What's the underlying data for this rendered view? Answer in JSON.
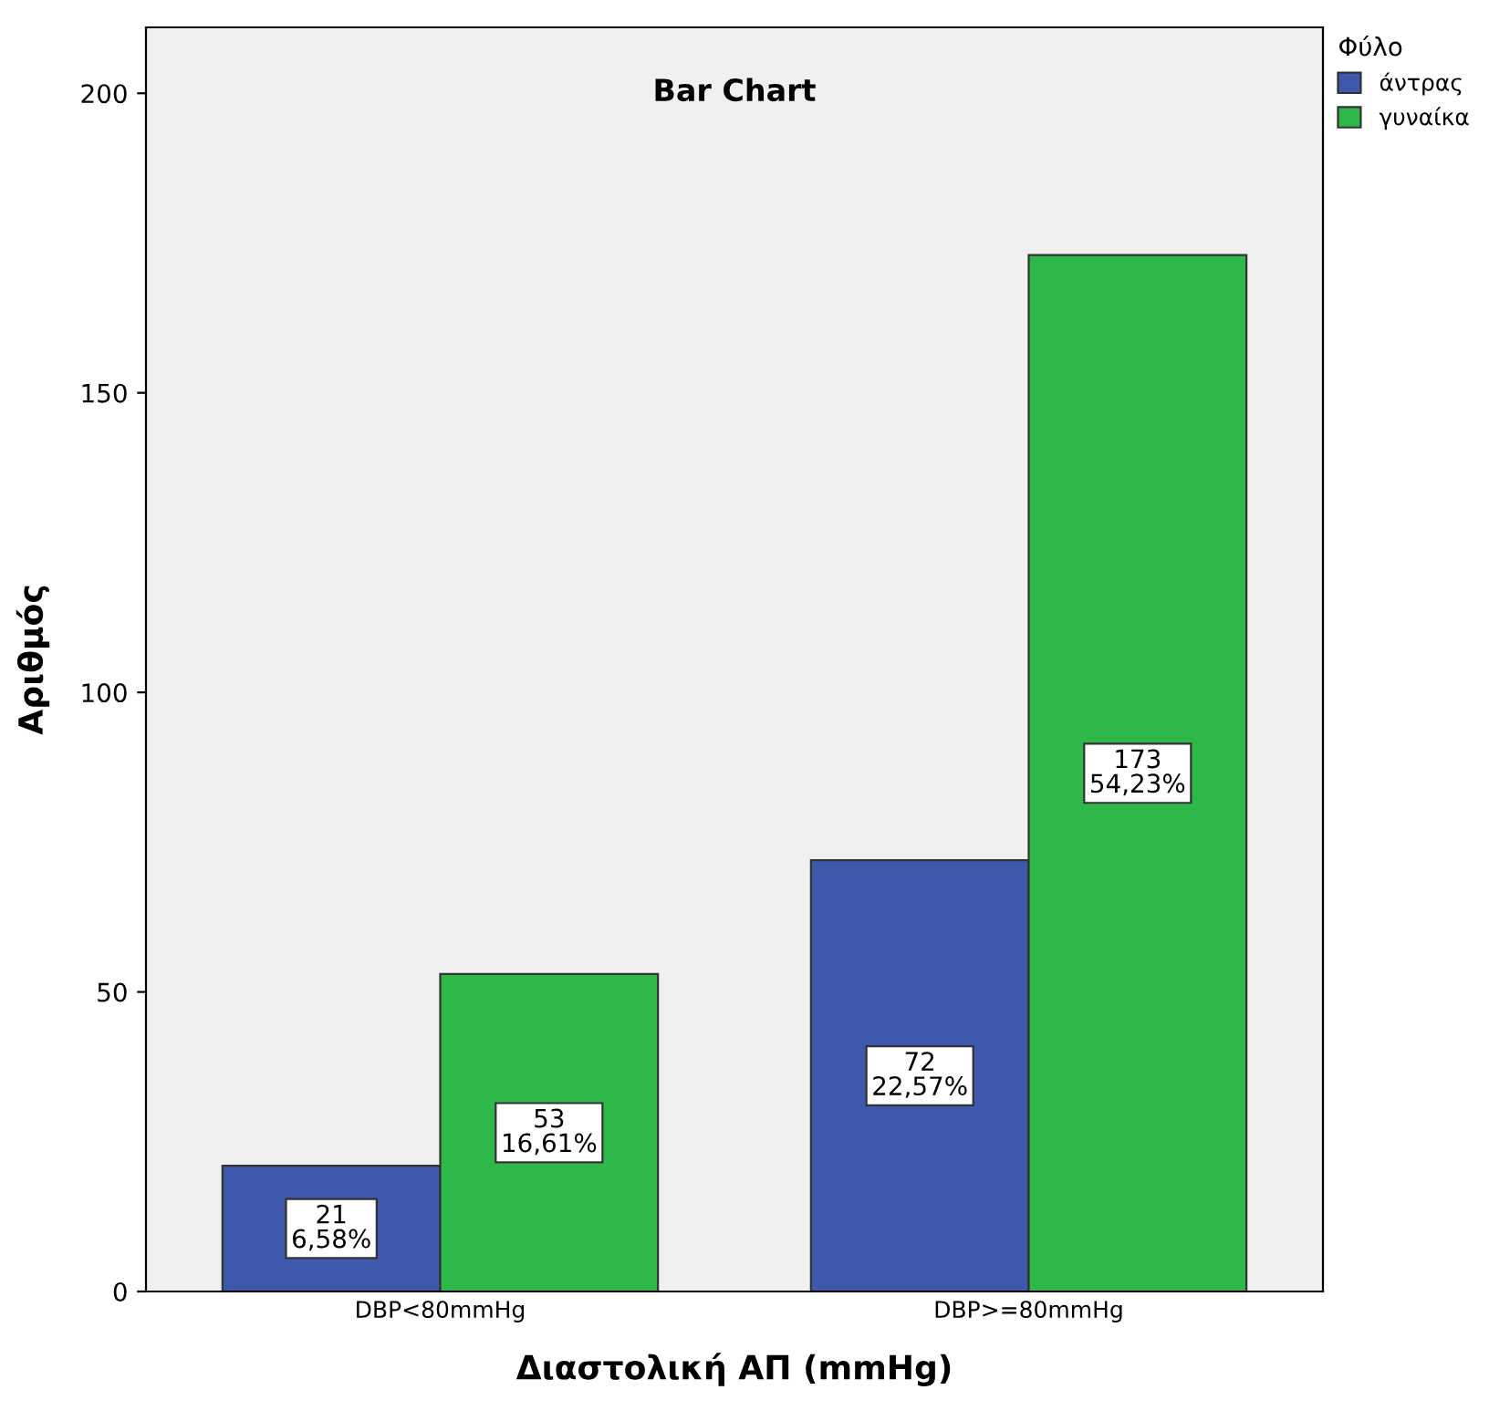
{
  "chart_data": {
    "type": "bar",
    "title": "Bar Chart",
    "xlabel": "Διαστολική ΑΠ (mmHg)",
    "ylabel": "Αριθμός",
    "legend_title": "Φύλο",
    "categories": [
      "DBP<80mmHg",
      "DBP>=80mmHg"
    ],
    "series": [
      {
        "name": "άντρας",
        "color": "#3e58ac",
        "values": [
          21,
          72
        ],
        "value_labels": [
          "21\n6,58%",
          "72\n22,57%"
        ]
      },
      {
        "name": "γυναίκα",
        "color": "#2fb84a",
        "values": [
          53,
          173
        ],
        "value_labels": [
          "53\n16,61%",
          "173\n54,23%"
        ]
      }
    ],
    "ylim": [
      0,
      211
    ],
    "yticks": [
      0,
      50,
      100,
      150,
      200
    ],
    "grid": false,
    "legend": "top right"
  }
}
